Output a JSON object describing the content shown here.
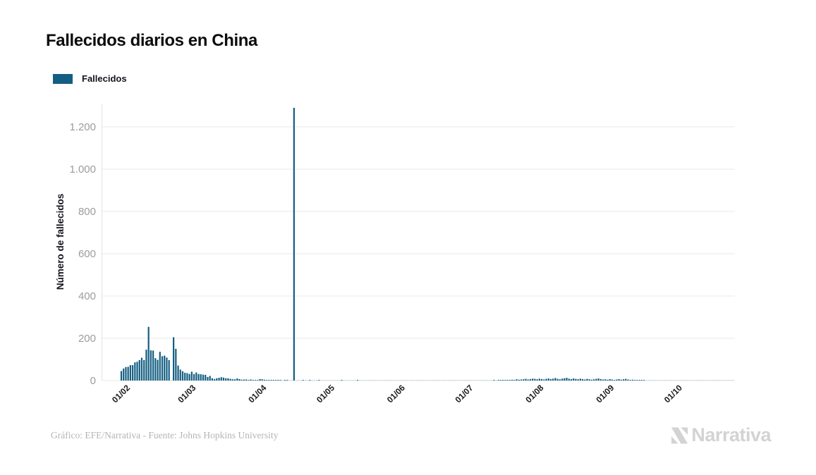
{
  "header": {
    "title": "Fallecidos diarios en China"
  },
  "legend": {
    "label": "Fallecidos",
    "color": "#145e82"
  },
  "footer": {
    "credit": "Gráfico: EFE/Narrativa - Fuente: Johns Hopkins University",
    "brand": "Narrativa"
  },
  "chart_data": {
    "type": "bar",
    "title": "Fallecidos diarios en China",
    "xlabel": "",
    "ylabel": "Número de fallecidos",
    "legend_position": "top-left",
    "grid": true,
    "bar_color": "#145e82",
    "series_name": "Fallecidos",
    "start_date": "01/02 (1 Feb 2020)",
    "x_tick_labels": [
      "01/02",
      "01/03",
      "01/04",
      "01/05",
      "01/06",
      "01/07",
      "01/08",
      "01/09",
      "01/10"
    ],
    "days_per_month": [
      29,
      31,
      30,
      31,
      30,
      31,
      31,
      30
    ],
    "y_ticks": [
      0,
      200,
      400,
      600,
      800,
      1000,
      1200
    ],
    "y_tick_labels": [
      "0",
      "200",
      "400",
      "600",
      "800",
      "1.000",
      "1.200"
    ],
    "ylim": [
      0,
      1310
    ],
    "peak_value": 1290,
    "peak_date": "17/04",
    "values": [
      45,
      57,
      64,
      65,
      73,
      73,
      86,
      89,
      97,
      108,
      97,
      146,
      254,
      143,
      142,
      106,
      98,
      136,
      115,
      118,
      109,
      97,
      0,
      205,
      150,
      71,
      52,
      44,
      37,
      35,
      31,
      42,
      31,
      38,
      31,
      30,
      28,
      27,
      17,
      22,
      11,
      7,
      11,
      13,
      16,
      14,
      11,
      11,
      8,
      6,
      6,
      10,
      7,
      4,
      5,
      5,
      3,
      5,
      3,
      2,
      1,
      7,
      6,
      4,
      1,
      3,
      1,
      2,
      1,
      1,
      1,
      0,
      1,
      1,
      0,
      0,
      1290,
      0,
      0,
      0,
      1,
      0,
      0,
      1,
      0,
      0,
      0,
      1,
      0,
      0,
      0,
      0,
      0,
      0,
      0,
      0,
      0,
      1,
      0,
      0,
      0,
      0,
      0,
      0,
      1,
      0,
      0,
      0,
      0,
      0,
      0,
      0,
      0,
      0,
      0,
      0,
      0,
      0,
      0,
      0,
      0,
      0,
      0,
      0,
      0,
      0,
      0,
      0,
      0,
      0,
      0,
      0,
      0,
      0,
      0,
      0,
      0,
      0,
      0,
      0,
      0,
      0,
      0,
      0,
      0,
      0,
      0,
      0,
      0,
      0,
      0,
      0,
      0,
      0,
      0,
      0,
      0,
      0,
      0,
      0,
      0,
      0,
      0,
      0,
      1,
      0,
      1,
      2,
      1,
      2,
      3,
      2,
      4,
      3,
      6,
      4,
      5,
      6,
      8,
      5,
      7,
      9,
      8,
      6,
      9,
      7,
      5,
      8,
      10,
      7,
      9,
      12,
      8,
      6,
      9,
      11,
      13,
      9,
      7,
      10,
      8,
      6,
      9,
      7,
      5,
      8,
      6,
      4,
      6,
      8,
      10,
      7,
      5,
      6,
      4,
      7,
      5,
      3,
      5,
      7,
      4,
      6,
      8,
      5,
      3,
      4,
      2,
      3,
      1,
      2,
      1,
      0,
      0,
      0,
      0,
      0,
      0,
      0,
      0,
      0,
      0,
      0,
      0,
      0,
      0,
      0,
      0,
      0,
      0,
      0,
      0,
      0,
      0,
      0,
      0,
      0,
      0,
      0,
      0,
      0,
      0,
      0,
      0,
      0,
      0,
      0,
      0,
      0,
      0,
      0
    ]
  }
}
